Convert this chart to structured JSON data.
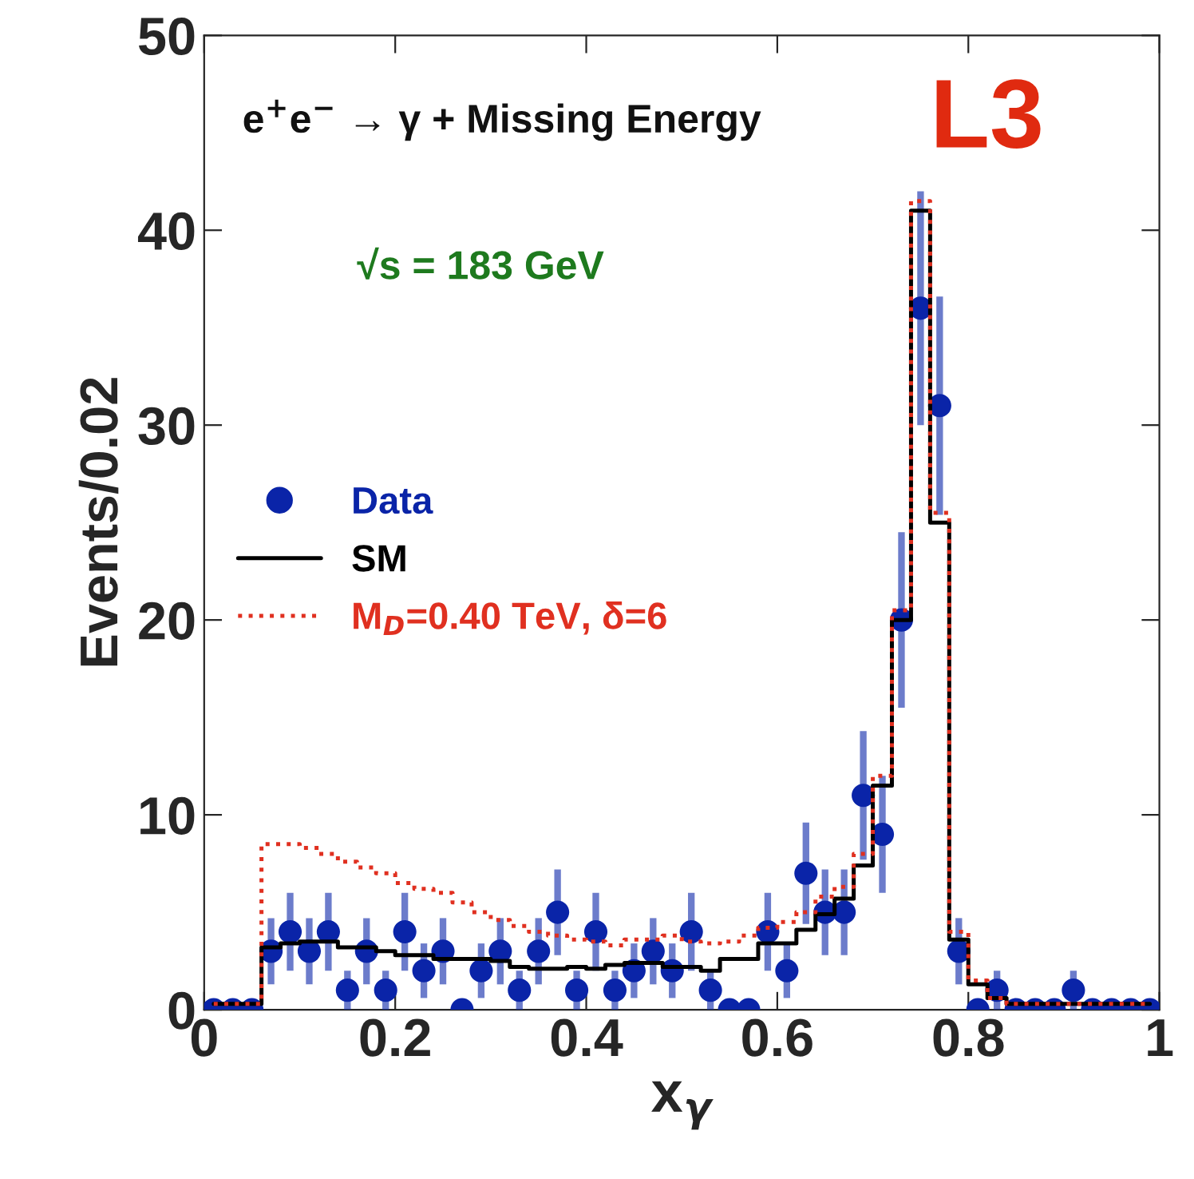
{
  "chart_data": {
    "type": "step",
    "xlabel": "x$_{γ}$",
    "ylabel": "Events/0.02",
    "annotations": [
      "e$^{+}$e$^{−}$ → γ + Missing Energy",
      "√s = 183 GeV",
      "L3"
    ],
    "x": [
      0.01,
      0.03,
      0.05,
      0.07,
      0.09,
      0.11,
      0.13,
      0.15,
      0.17,
      0.19,
      0.21,
      0.23,
      0.25,
      0.27,
      0.29,
      0.31,
      0.33,
      0.35,
      0.37,
      0.39,
      0.41,
      0.43,
      0.45,
      0.47,
      0.49,
      0.51,
      0.53,
      0.55,
      0.57,
      0.59,
      0.61,
      0.63,
      0.65,
      0.67,
      0.69,
      0.71,
      0.73,
      0.75,
      0.77,
      0.79,
      0.81,
      0.83,
      0.85,
      0.87,
      0.89,
      0.91,
      0.93,
      0.95,
      0.97,
      0.99
    ],
    "xlim": [
      0,
      1
    ],
    "xticks": [
      0,
      0.2,
      0.4,
      0.6,
      0.8,
      1
    ],
    "ylim": [
      0,
      50
    ],
    "yticks": [
      0,
      10,
      20,
      30,
      40,
      50
    ],
    "legend": "center left",
    "grid": false,
    "series": [
      {
        "name": "Data",
        "type": "scatter",
        "marker": "circle",
        "color": "#0a24a8",
        "values": [
          0,
          0,
          0,
          3,
          4,
          3,
          4,
          1,
          3,
          1,
          4,
          2,
          3,
          0,
          2,
          3,
          1,
          3,
          5,
          1,
          4,
          1,
          2,
          3,
          2,
          4,
          1,
          0,
          0,
          4,
          2,
          7,
          5,
          5,
          11,
          9,
          20,
          36,
          31,
          3,
          0,
          1,
          0,
          0,
          0,
          1,
          0,
          0,
          0,
          0
        ],
        "errors": [
          null,
          null,
          null,
          1.7,
          2,
          1.7,
          2,
          1,
          1.7,
          1,
          2,
          1.4,
          1.7,
          null,
          1.4,
          1.7,
          1,
          1.7,
          2.2,
          1,
          2,
          1,
          1.4,
          1.7,
          1.4,
          2,
          1,
          null,
          null,
          2,
          1.4,
          2.6,
          2.2,
          2.2,
          3.3,
          3,
          4.5,
          6,
          5.6,
          1.7,
          null,
          1,
          null,
          null,
          null,
          1,
          null,
          null,
          null,
          null
        ]
      },
      {
        "name": "SM",
        "line_style": "solid",
        "color": "#000000",
        "values": [
          0.3,
          0.3,
          0.3,
          3.2,
          3.4,
          3.5,
          3.5,
          3.2,
          3.2,
          3.0,
          2.8,
          2.8,
          2.6,
          2.6,
          2.6,
          2.5,
          2.2,
          2.1,
          2.1,
          2.2,
          2.1,
          2.3,
          2.4,
          2.4,
          2.2,
          2.2,
          2.0,
          2.6,
          2.6,
          3.4,
          3.4,
          4.1,
          4.9,
          5.7,
          7.4,
          11.5,
          20,
          41,
          25,
          3.6,
          1.3,
          0.6,
          0.3,
          0.3,
          0.3,
          0.3,
          0.3,
          0.3,
          0.3,
          0.3
        ]
      },
      {
        "name": "M$_{D}$=0.40 TeV, δ=6",
        "line_style": "dotted",
        "color": "#e03020",
        "values": [
          0.3,
          0.3,
          0.3,
          8.5,
          8.5,
          8.3,
          8.0,
          7.6,
          7.3,
          7.0,
          6.5,
          6.2,
          6.0,
          5.5,
          5.0,
          4.6,
          4.3,
          4.0,
          3.8,
          3.6,
          3.5,
          3.3,
          3.6,
          3.6,
          3.8,
          3.5,
          3.4,
          3.5,
          3.8,
          4.2,
          4.5,
          5.0,
          5.8,
          6.3,
          8.0,
          12,
          20.5,
          41.5,
          25.5,
          4.0,
          1.5,
          0.6,
          0.3,
          0.3,
          0.3,
          0.3,
          0.3,
          0.3,
          0.3,
          0.3
        ]
      }
    ]
  }
}
